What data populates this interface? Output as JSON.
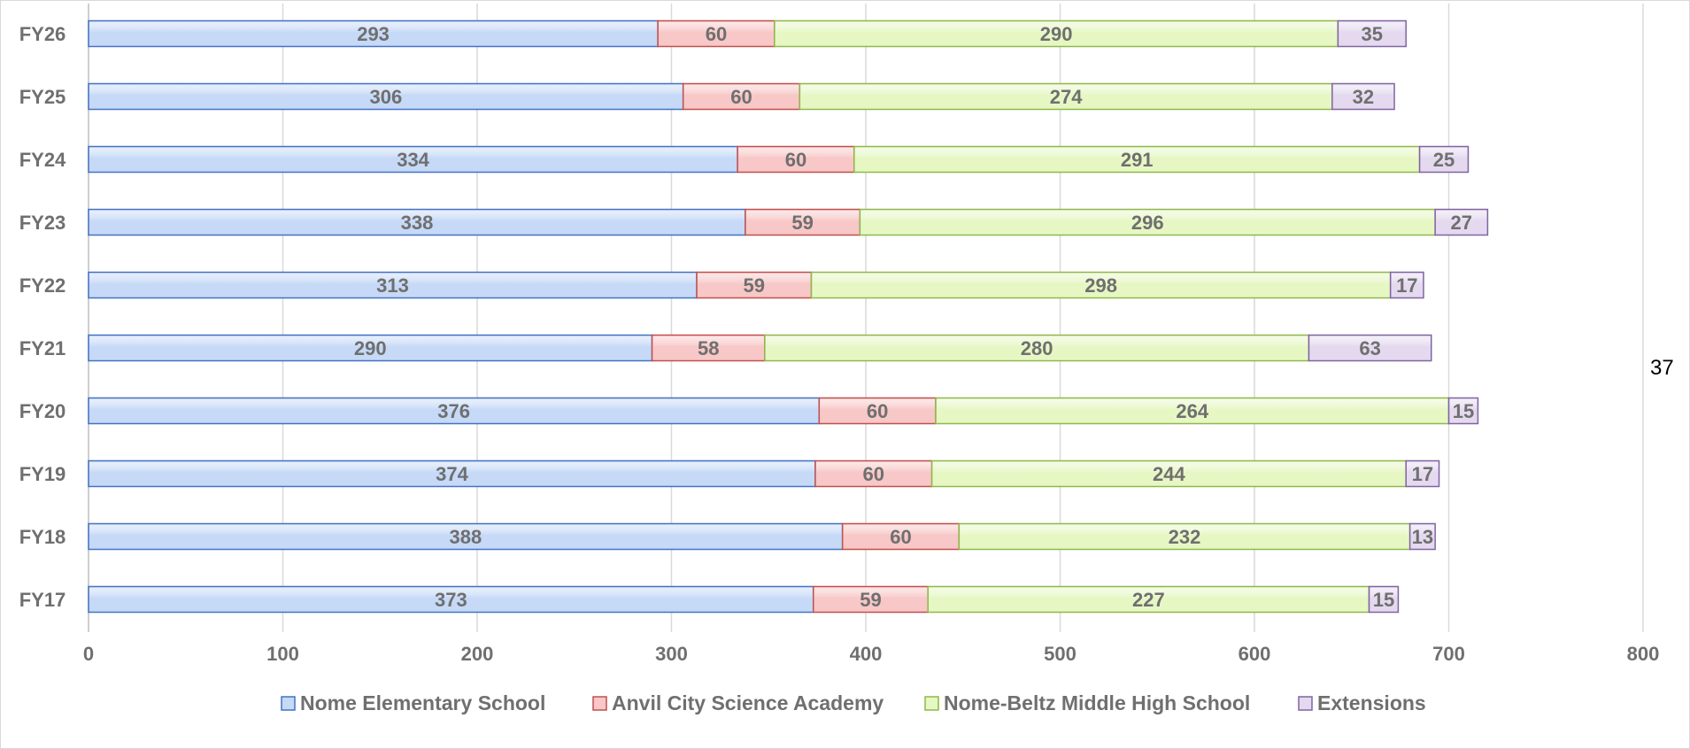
{
  "side_note": "37",
  "chart_data": {
    "type": "bar",
    "orientation": "horizontal",
    "stacked": true,
    "categories": [
      "FY26",
      "FY25",
      "FY24",
      "FY23",
      "FY22",
      "FY21",
      "FY20",
      "FY19",
      "FY18",
      "FY17"
    ],
    "series": [
      {
        "name": "Nome Elementary School",
        "values": [
          293,
          306,
          334,
          338,
          313,
          290,
          376,
          374,
          388,
          373
        ],
        "fill": "#c6d9f7",
        "stroke": "#4472c4"
      },
      {
        "name": "Anvil City Science Academy",
        "values": [
          60,
          60,
          60,
          59,
          59,
          58,
          60,
          60,
          60,
          59
        ],
        "fill": "#f8c7c7",
        "stroke": "#c0504d"
      },
      {
        "name": "Nome-Beltz Middle High School",
        "values": [
          290,
          274,
          291,
          296,
          298,
          280,
          264,
          244,
          232,
          227
        ],
        "fill": "#e6f7c4",
        "stroke": "#8fb84a"
      },
      {
        "name": "Extensions",
        "values": [
          35,
          32,
          25,
          27,
          17,
          63,
          15,
          17,
          13,
          15
        ],
        "fill": "#e4d9ef",
        "stroke": "#8064a2"
      }
    ],
    "xlim": [
      0,
      800
    ],
    "xticks": [
      0,
      100,
      200,
      300,
      400,
      500,
      600,
      700,
      800
    ],
    "grid": true,
    "legend_position": "bottom",
    "title": "",
    "xlabel": "",
    "ylabel": ""
  }
}
